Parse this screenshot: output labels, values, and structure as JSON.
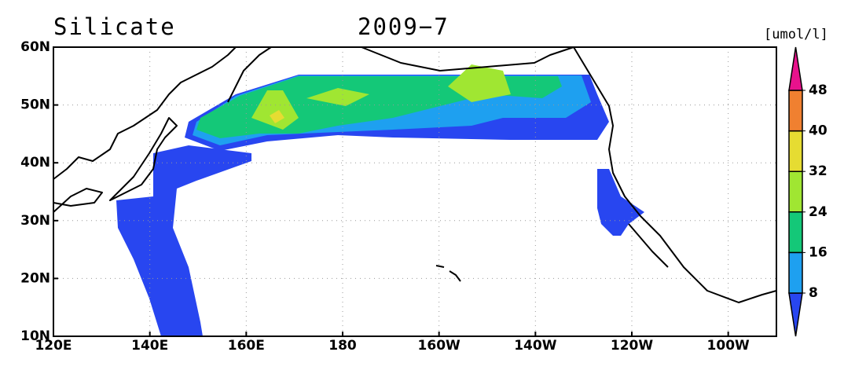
{
  "map": {
    "title": "Silicate",
    "date": "2009−7",
    "unit": "[umol/l]",
    "xlim": [
      120,
      270
    ],
    "ylim": [
      10,
      60
    ],
    "lon_ticks": [
      {
        "value": 120,
        "label": "120E"
      },
      {
        "value": 140,
        "label": "140E"
      },
      {
        "value": 160,
        "label": "160E"
      },
      {
        "value": 180,
        "label": "180"
      },
      {
        "value": 200,
        "label": "160W"
      },
      {
        "value": 220,
        "label": "140W"
      },
      {
        "value": 240,
        "label": "120W"
      },
      {
        "value": 260,
        "label": "100W"
      }
    ],
    "lat_ticks": [
      {
        "value": 10,
        "label": "10N"
      },
      {
        "value": 20,
        "label": "20N"
      },
      {
        "value": 30,
        "label": "30N"
      },
      {
        "value": 40,
        "label": "40N"
      },
      {
        "value": 50,
        "label": "50N"
      },
      {
        "value": 60,
        "label": "60N"
      }
    ],
    "grid": true,
    "colorbar": {
      "ticks": [
        8,
        16,
        24,
        32,
        40,
        48
      ],
      "colors": [
        "#2846f0",
        "#1ea0f0",
        "#14c878",
        "#a0e632",
        "#e6dc32",
        "#f08030",
        "#e8128c"
      ]
    }
  }
}
